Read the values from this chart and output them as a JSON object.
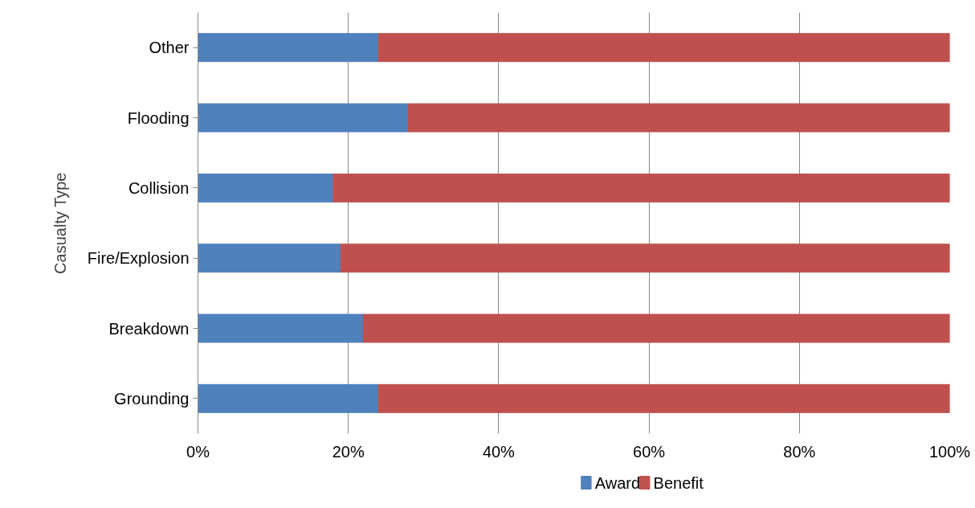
{
  "chart_data": {
    "type": "bar",
    "orientation": "horizontal",
    "stacked": true,
    "ylabel": "Casualty Type",
    "categories": [
      "Other",
      "Flooding",
      "Collision",
      "Fire/Explosion",
      "Breakdown",
      "Grounding"
    ],
    "series": [
      {
        "name": "Award",
        "color": "#4f81bd",
        "values": [
          24,
          28,
          18,
          19,
          22,
          24
        ]
      },
      {
        "name": "Benefit",
        "color": "#c0504d",
        "values": [
          76,
          72,
          82,
          81,
          78,
          76
        ]
      }
    ],
    "xlim": [
      0,
      100
    ],
    "xticks": [
      {
        "value": 0,
        "label": "0%"
      },
      {
        "value": 20,
        "label": "20%"
      },
      {
        "value": 40,
        "label": "40%"
      },
      {
        "value": 60,
        "label": "60%"
      },
      {
        "value": 80,
        "label": "80%"
      },
      {
        "value": 100,
        "label": "100%"
      }
    ],
    "grid": "x",
    "legend": "bottom"
  }
}
